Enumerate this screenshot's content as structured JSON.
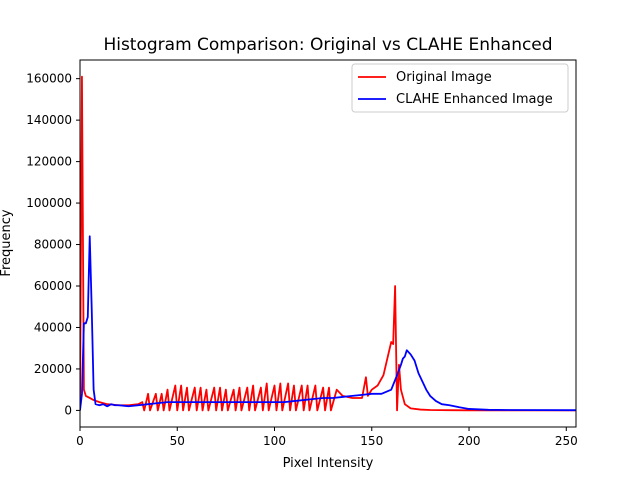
{
  "chart_data": {
    "type": "line",
    "title": "Histogram Comparison: Original vs CLAHE Enhanced",
    "xlabel": "Pixel Intensity",
    "ylabel": "Frequency",
    "xlim": [
      0,
      255
    ],
    "ylim": [
      -8000,
      169000
    ],
    "xticks": [
      0,
      50,
      100,
      150,
      200,
      250
    ],
    "yticks": [
      0,
      20000,
      40000,
      60000,
      80000,
      100000,
      120000,
      140000,
      160000
    ],
    "grid": false,
    "legend_position": "top-right",
    "series": [
      {
        "name": "Original Image",
        "color": "#ff0000",
        "points": [
          [
            0,
            0
          ],
          [
            1,
            161000
          ],
          [
            2,
            10000
          ],
          [
            3,
            7000
          ],
          [
            5,
            6000
          ],
          [
            7,
            5000
          ],
          [
            10,
            4000
          ],
          [
            14,
            3000
          ],
          [
            20,
            2500
          ],
          [
            25,
            2500
          ],
          [
            30,
            3000
          ],
          [
            32,
            4000
          ],
          [
            33,
            0
          ],
          [
            35,
            8000
          ],
          [
            36,
            0
          ],
          [
            39,
            8000
          ],
          [
            40,
            0
          ],
          [
            42,
            8000
          ],
          [
            43,
            0
          ],
          [
            45,
            10000
          ],
          [
            46,
            0
          ],
          [
            49,
            12000
          ],
          [
            50,
            0
          ],
          [
            52,
            12000
          ],
          [
            53,
            0
          ],
          [
            55,
            11000
          ],
          [
            56,
            0
          ],
          [
            59,
            11000
          ],
          [
            60,
            0
          ],
          [
            62,
            11000
          ],
          [
            63,
            0
          ],
          [
            65,
            10000
          ],
          [
            66,
            0
          ],
          [
            69,
            11000
          ],
          [
            70,
            0
          ],
          [
            72,
            11000
          ],
          [
            73,
            0
          ],
          [
            75,
            10000
          ],
          [
            76,
            0
          ],
          [
            79,
            10000
          ],
          [
            80,
            0
          ],
          [
            82,
            11000
          ],
          [
            83,
            0
          ],
          [
            86,
            11000
          ],
          [
            87,
            0
          ],
          [
            89,
            12000
          ],
          [
            90,
            0
          ],
          [
            93,
            11000
          ],
          [
            94,
            0
          ],
          [
            96,
            13000
          ],
          [
            97,
            0
          ],
          [
            100,
            12000
          ],
          [
            101,
            0
          ],
          [
            103,
            13000
          ],
          [
            104,
            0
          ],
          [
            107,
            13000
          ],
          [
            108,
            0
          ],
          [
            110,
            12000
          ],
          [
            111,
            0
          ],
          [
            114,
            12000
          ],
          [
            115,
            0
          ],
          [
            117,
            12000
          ],
          [
            118,
            0
          ],
          [
            121,
            12000
          ],
          [
            122,
            0
          ],
          [
            125,
            11000
          ],
          [
            126,
            0
          ],
          [
            128,
            11000
          ],
          [
            129,
            0
          ],
          [
            132,
            10000
          ],
          [
            135,
            7000
          ],
          [
            140,
            6000
          ],
          [
            145,
            6000
          ],
          [
            147,
            16000
          ],
          [
            148,
            7000
          ],
          [
            150,
            10000
          ],
          [
            153,
            12000
          ],
          [
            156,
            17000
          ],
          [
            158,
            25000
          ],
          [
            160,
            33000
          ],
          [
            161,
            32000
          ],
          [
            162,
            60000
          ],
          [
            163,
            0
          ],
          [
            164,
            22000
          ],
          [
            165,
            10000
          ],
          [
            167,
            3000
          ],
          [
            170,
            1000
          ],
          [
            175,
            400
          ],
          [
            180,
            200
          ],
          [
            190,
            100
          ],
          [
            200,
            50
          ],
          [
            220,
            20
          ],
          [
            255,
            10
          ]
        ]
      },
      {
        "name": "CLAHE Enhanced Image",
        "color": "#0000ff",
        "points": [
          [
            0,
            0
          ],
          [
            1,
            8000
          ],
          [
            2,
            42000
          ],
          [
            3,
            42000
          ],
          [
            4,
            45000
          ],
          [
            5,
            84000
          ],
          [
            6,
            50000
          ],
          [
            7,
            10000
          ],
          [
            8,
            3000
          ],
          [
            10,
            2500
          ],
          [
            12,
            3000
          ],
          [
            14,
            2000
          ],
          [
            16,
            3000
          ],
          [
            18,
            2500
          ],
          [
            20,
            2500
          ],
          [
            25,
            2000
          ],
          [
            30,
            2500
          ],
          [
            35,
            3000
          ],
          [
            40,
            3500
          ],
          [
            45,
            4000
          ],
          [
            50,
            4000
          ],
          [
            55,
            4000
          ],
          [
            60,
            4000
          ],
          [
            65,
            4000
          ],
          [
            70,
            4000
          ],
          [
            75,
            4000
          ],
          [
            80,
            4000
          ],
          [
            85,
            4000
          ],
          [
            90,
            4000
          ],
          [
            95,
            4000
          ],
          [
            100,
            4000
          ],
          [
            105,
            4000
          ],
          [
            110,
            4500
          ],
          [
            115,
            5000
          ],
          [
            120,
            5500
          ],
          [
            125,
            6000
          ],
          [
            130,
            6000
          ],
          [
            135,
            6500
          ],
          [
            140,
            7000
          ],
          [
            145,
            7500
          ],
          [
            150,
            8000
          ],
          [
            155,
            8000
          ],
          [
            160,
            10000
          ],
          [
            163,
            17000
          ],
          [
            165,
            22000
          ],
          [
            166,
            25000
          ],
          [
            167,
            26000
          ],
          [
            168,
            29000
          ],
          [
            170,
            27000
          ],
          [
            172,
            24000
          ],
          [
            174,
            18000
          ],
          [
            176,
            14000
          ],
          [
            178,
            10000
          ],
          [
            180,
            7000
          ],
          [
            183,
            4500
          ],
          [
            186,
            3000
          ],
          [
            190,
            2500
          ],
          [
            195,
            1500
          ],
          [
            200,
            700
          ],
          [
            210,
            300
          ],
          [
            220,
            200
          ],
          [
            255,
            100
          ]
        ]
      }
    ]
  }
}
